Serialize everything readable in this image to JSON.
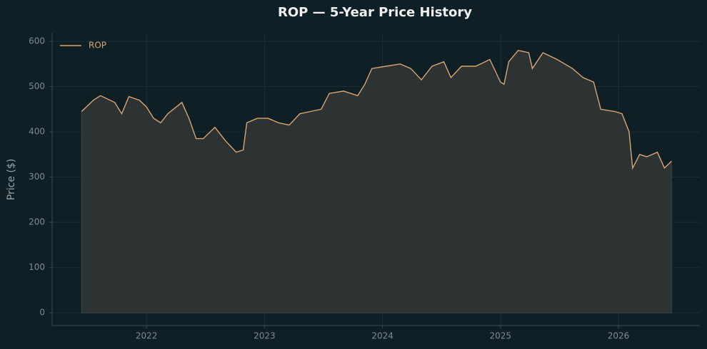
{
  "chart_data": {
    "type": "area-line",
    "title": "ROP — 5-Year Price History",
    "y_label": "Price ($)",
    "x": [
      2021.45,
      2021.55,
      2021.61,
      2021.73,
      2021.79,
      2021.85,
      2021.94,
      2022.0,
      2022.06,
      2022.12,
      2022.18,
      2022.3,
      2022.36,
      2022.42,
      2022.48,
      2022.58,
      2022.67,
      2022.76,
      2022.82,
      2022.85,
      2022.94,
      2023.03,
      2023.12,
      2023.21,
      2023.3,
      2023.39,
      2023.48,
      2023.55,
      2023.67,
      2023.79,
      2023.85,
      2023.91,
      2024.03,
      2024.15,
      2024.24,
      2024.33,
      2024.42,
      2024.52,
      2024.58,
      2024.67,
      2024.79,
      2024.91,
      2025.0,
      2025.03,
      2025.07,
      2025.15,
      2025.24,
      2025.27,
      2025.36,
      2025.48,
      2025.61,
      2025.7,
      2025.79,
      2025.85,
      2025.97,
      2026.03,
      2026.09,
      2026.12,
      2026.18,
      2026.24,
      2026.33,
      2026.39,
      2026.45
    ],
    "series": [
      {
        "name": "ROP",
        "color": "#d9a56f",
        "fill": "#2d3232",
        "values": [
          445,
          470,
          480,
          465,
          440,
          478,
          470,
          455,
          430,
          420,
          440,
          465,
          430,
          385,
          385,
          410,
          380,
          355,
          360,
          420,
          430,
          430,
          420,
          415,
          440,
          445,
          450,
          485,
          490,
          480,
          505,
          540,
          545,
          550,
          540,
          515,
          545,
          555,
          520,
          545,
          545,
          560,
          510,
          505,
          555,
          580,
          575,
          540,
          575,
          560,
          540,
          520,
          510,
          450,
          445,
          440,
          400,
          320,
          350,
          345,
          355,
          320,
          335
        ]
      }
    ],
    "xlim": [
      2021.2,
      2026.69
    ],
    "xticks": [
      2022,
      2023,
      2024,
      2025,
      2026
    ],
    "ylim": [
      -28,
      619
    ],
    "yticks": [
      0,
      100,
      200,
      300,
      400,
      500,
      600
    ],
    "grid": true,
    "legend": "upper left"
  }
}
